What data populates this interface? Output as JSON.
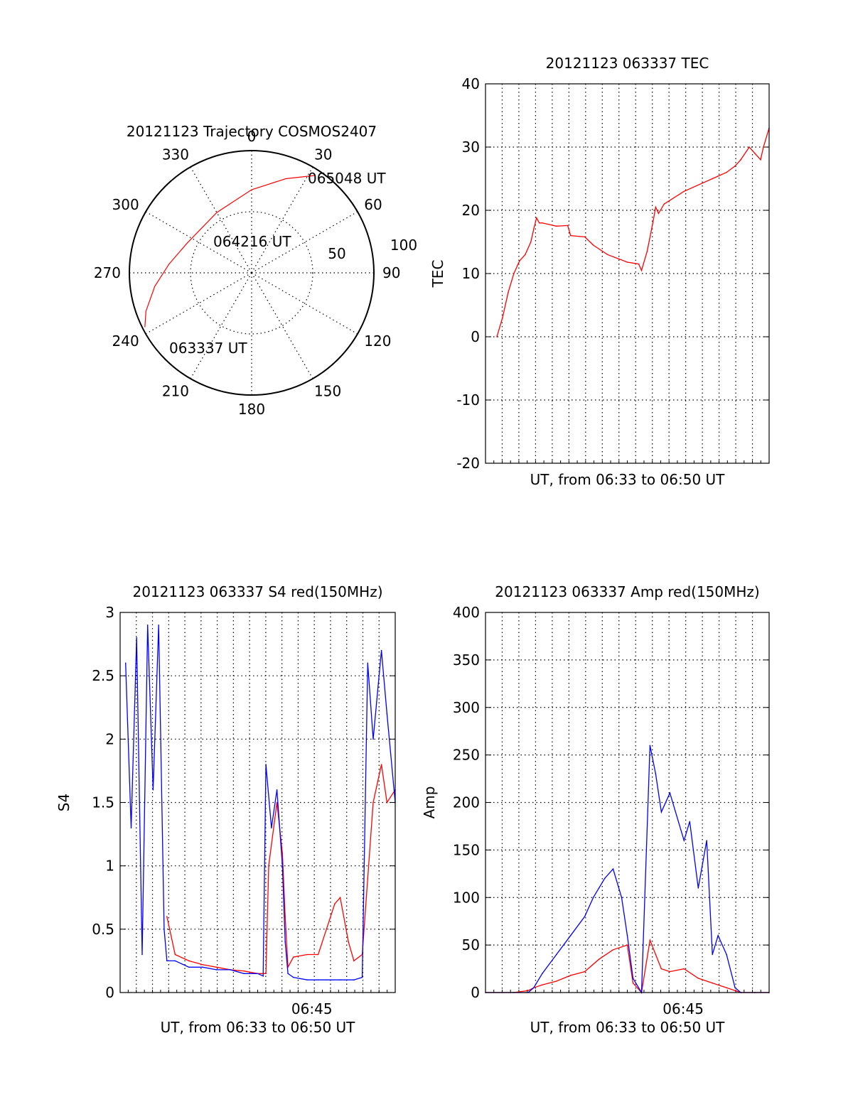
{
  "colors": {
    "red": "#ff0000",
    "blue": "#0000ff",
    "black": "#000000"
  },
  "chart_data": [
    {
      "type": "polar",
      "title": "20121123 Trajectory COSMOS2407",
      "angle_labels": [
        "0",
        "30",
        "60",
        "90",
        "120",
        "150",
        "180",
        "210",
        "240",
        "270",
        "300",
        "330"
      ],
      "radius_labels": [
        "50",
        "100"
      ],
      "start_label": "063337 UT",
      "end_label": "065048 UT",
      "mid_label": "064216 UT",
      "trajectory": {
        "azimuth": [
          243,
          250,
          262,
          276,
          295,
          330,
          0,
          20,
          33
        ],
        "distance": [
          98,
          92,
          80,
          68,
          58,
          57,
          68,
          82,
          95
        ]
      }
    },
    {
      "type": "line",
      "title": "20121123 063337 TEC",
      "ylabel": "TEC",
      "xlabel": "UT, from 06:33 to 06:50 UT",
      "ylim": [
        -20,
        40
      ],
      "yticks": [
        "40",
        "30",
        "20",
        "10",
        "0",
        "-10",
        "-20"
      ],
      "xlim": [
        0,
        1
      ],
      "series": [
        {
          "color": "red",
          "x": [
            0.04,
            0.06,
            0.08,
            0.1,
            0.12,
            0.14,
            0.16,
            0.17,
            0.18,
            0.19,
            0.2,
            0.25,
            0.29,
            0.3,
            0.35,
            0.38,
            0.43,
            0.5,
            0.54,
            0.55,
            0.57,
            0.59,
            0.6,
            0.61,
            0.63,
            0.7,
            0.8,
            0.85,
            0.88,
            0.9,
            0.93,
            0.95,
            0.97,
            0.98,
            1.0
          ],
          "y": [
            0,
            3,
            7,
            10,
            12,
            13,
            15,
            17,
            18.8,
            18,
            18,
            17.5,
            17.6,
            16,
            15.8,
            14.5,
            13,
            11.8,
            11.5,
            10.5,
            13.5,
            18,
            20.5,
            19.5,
            21,
            23,
            25,
            26,
            27,
            28,
            30,
            29,
            28,
            30,
            33
          ]
        }
      ]
    },
    {
      "type": "line",
      "title": "20121123 063337 S4 red(150MHz)",
      "ylabel": "S4",
      "xlabel": "UT, from 06:33 to 06:50 UT",
      "xtick": "06:45",
      "ylim": [
        0,
        3
      ],
      "yticks": [
        "3",
        "2.5",
        "2",
        "1.5",
        "1",
        "0.5",
        "0"
      ],
      "series": [
        {
          "color": "red",
          "x": [
            0.17,
            0.2,
            0.25,
            0.3,
            0.35,
            0.4,
            0.45,
            0.5,
            0.53,
            0.54,
            0.57,
            0.59,
            0.6,
            0.61,
            0.63,
            0.68,
            0.72,
            0.75,
            0.78,
            0.8,
            0.83,
            0.85,
            0.88,
            0.9,
            0.92,
            0.95,
            0.97,
            1.0
          ],
          "y": [
            0.6,
            0.3,
            0.25,
            0.22,
            0.2,
            0.18,
            0.17,
            0.15,
            0.15,
            1.0,
            1.5,
            1.1,
            0.6,
            0.2,
            0.28,
            0.3,
            0.3,
            0.5,
            0.7,
            0.75,
            0.4,
            0.25,
            0.3,
            0.9,
            1.5,
            1.8,
            1.5,
            1.6
          ]
        },
        {
          "color": "blue",
          "x": [
            0.02,
            0.04,
            0.06,
            0.08,
            0.1,
            0.12,
            0.14,
            0.16,
            0.17,
            0.2,
            0.25,
            0.3,
            0.35,
            0.4,
            0.45,
            0.5,
            0.52,
            0.53,
            0.55,
            0.57,
            0.59,
            0.6,
            0.61,
            0.63,
            0.68,
            0.72,
            0.75,
            0.8,
            0.85,
            0.88,
            0.9,
            0.92,
            0.95,
            0.97,
            1.0
          ],
          "y": [
            2.6,
            1.3,
            2.8,
            0.3,
            2.9,
            1.6,
            2.9,
            0.5,
            0.25,
            0.25,
            0.2,
            0.2,
            0.18,
            0.18,
            0.15,
            0.15,
            0.13,
            1.8,
            1.3,
            1.6,
            1.0,
            0.4,
            0.15,
            0.12,
            0.1,
            0.1,
            0.1,
            0.1,
            0.1,
            0.12,
            2.6,
            2.0,
            2.7,
            2.2,
            1.5
          ]
        }
      ]
    },
    {
      "type": "line",
      "title": "20121123 063337 Amp red(150MHz)",
      "ylabel": "Amp",
      "xlabel": "UT, from 06:33 to 06:50 UT",
      "xtick": "06:45",
      "ylim": [
        0,
        400
      ],
      "yticks": [
        "400",
        "350",
        "300",
        "250",
        "200",
        "150",
        "100",
        "50",
        "0"
      ],
      "series": [
        {
          "color": "red",
          "x": [
            0.0,
            0.1,
            0.15,
            0.17,
            0.2,
            0.25,
            0.3,
            0.35,
            0.4,
            0.45,
            0.5,
            0.52,
            0.55,
            0.58,
            0.6,
            0.62,
            0.65,
            0.7,
            0.75,
            0.8,
            0.85,
            0.88,
            0.9,
            0.95,
            1.0
          ],
          "y": [
            0,
            0,
            2,
            5,
            8,
            12,
            18,
            22,
            35,
            45,
            50,
            10,
            0,
            55,
            40,
            25,
            22,
            25,
            15,
            10,
            5,
            2,
            0,
            0,
            0
          ]
        },
        {
          "color": "blue",
          "x": [
            0.0,
            0.1,
            0.15,
            0.17,
            0.2,
            0.25,
            0.3,
            0.35,
            0.38,
            0.4,
            0.42,
            0.45,
            0.48,
            0.5,
            0.52,
            0.55,
            0.58,
            0.6,
            0.62,
            0.65,
            0.7,
            0.72,
            0.75,
            0.78,
            0.8,
            0.82,
            0.85,
            0.88,
            0.9,
            0.95,
            1.0
          ],
          "y": [
            0,
            0,
            0,
            5,
            20,
            40,
            60,
            80,
            100,
            110,
            120,
            130,
            100,
            60,
            15,
            0,
            260,
            230,
            190,
            210,
            160,
            180,
            110,
            160,
            40,
            60,
            40,
            5,
            0,
            0,
            0
          ]
        }
      ]
    }
  ]
}
